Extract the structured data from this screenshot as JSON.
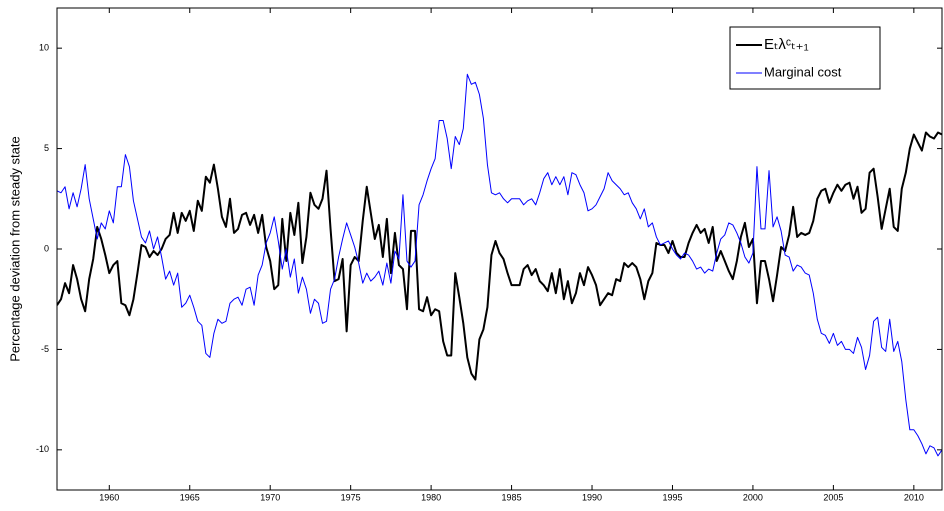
{
  "chart_data": {
    "type": "line",
    "ylabel": "Percentage deviation from steady state",
    "xlim": [
      1956.75,
      2011.75
    ],
    "xticks": [
      1960,
      1965,
      1970,
      1975,
      1980,
      1985,
      1990,
      1995,
      2000,
      2005,
      2010
    ],
    "ylim": [
      -12,
      12
    ],
    "yticks": [
      -10,
      -5,
      0,
      5,
      10
    ],
    "legend": "top-right",
    "x": [
      1956.75,
      1957,
      1957.25,
      1957.5,
      1957.75,
      1958,
      1958.25,
      1958.5,
      1958.75,
      1959,
      1959.25,
      1959.5,
      1959.75,
      1960,
      1960.25,
      1960.5,
      1960.75,
      1961,
      1961.25,
      1961.5,
      1961.75,
      1962,
      1962.25,
      1962.5,
      1962.75,
      1963,
      1963.25,
      1963.5,
      1963.75,
      1964,
      1964.25,
      1964.5,
      1964.75,
      1965,
      1965.25,
      1965.5,
      1965.75,
      1966,
      1966.25,
      1966.5,
      1966.75,
      1967,
      1967.25,
      1967.5,
      1967.75,
      1968,
      1968.25,
      1968.5,
      1968.75,
      1969,
      1969.25,
      1969.5,
      1969.75,
      1970,
      1970.25,
      1970.5,
      1970.75,
      1971,
      1971.25,
      1971.5,
      1971.75,
      1972,
      1972.25,
      1972.5,
      1972.75,
      1973,
      1973.25,
      1973.5,
      1973.75,
      1974,
      1974.25,
      1974.5,
      1974.75,
      1975,
      1975.25,
      1975.5,
      1975.75,
      1976,
      1976.25,
      1976.5,
      1976.75,
      1977,
      1977.25,
      1977.5,
      1977.75,
      1978,
      1978.25,
      1978.5,
      1978.75,
      1979,
      1979.25,
      1979.5,
      1979.75,
      1980,
      1980.25,
      1980.5,
      1980.75,
      1981,
      1981.25,
      1981.5,
      1981.75,
      1982,
      1982.25,
      1982.5,
      1982.75,
      1983,
      1983.25,
      1983.5,
      1983.75,
      1984,
      1984.25,
      1984.5,
      1984.75,
      1985,
      1985.25,
      1985.5,
      1985.75,
      1986,
      1986.25,
      1986.5,
      1986.75,
      1987,
      1987.25,
      1987.5,
      1987.75,
      1988,
      1988.25,
      1988.5,
      1988.75,
      1989,
      1989.25,
      1989.5,
      1989.75,
      1990,
      1990.25,
      1990.5,
      1990.75,
      1991,
      1991.25,
      1991.5,
      1991.75,
      1992,
      1992.25,
      1992.5,
      1992.75,
      1993,
      1993.25,
      1993.5,
      1993.75,
      1994,
      1994.25,
      1994.5,
      1994.75,
      1995,
      1995.25,
      1995.5,
      1995.75,
      1996,
      1996.25,
      1996.5,
      1996.75,
      1997,
      1997.25,
      1997.5,
      1997.75,
      1998,
      1998.25,
      1998.5,
      1998.75,
      1999,
      1999.25,
      1999.5,
      1999.75,
      2000,
      2000.25,
      2000.5,
      2000.75,
      2001,
      2001.25,
      2001.5,
      2001.75,
      2002,
      2002.25,
      2002.5,
      2002.75,
      2003,
      2003.25,
      2003.5,
      2003.75,
      2004,
      2004.25,
      2004.5,
      2004.75,
      2005,
      2005.25,
      2005.5,
      2005.75,
      2006,
      2006.25,
      2006.5,
      2006.75,
      2007,
      2007.25,
      2007.5,
      2007.75,
      2008,
      2008.25,
      2008.5,
      2008.75,
      2009,
      2009.25,
      2009.5,
      2009.75,
      2010,
      2010.25,
      2010.5,
      2010.75,
      2011,
      2011.25,
      2011.5,
      2011.75
    ],
    "series": [
      {
        "name": "Eₜλᶜₜ₊₁",
        "color": "#000000",
        "width": 2,
        "values": [
          -2.8,
          -2.5,
          -1.7,
          -2.2,
          -0.8,
          -1.5,
          -2.5,
          -3.1,
          -1.5,
          -0.5,
          1.1,
          0.5,
          -0.3,
          -1.2,
          -0.8,
          -0.6,
          -2.7,
          -2.8,
          -3.3,
          -2.5,
          -1.2,
          0.2,
          0.1,
          -0.4,
          -0.1,
          -0.3,
          0.0,
          0.5,
          0.7,
          1.8,
          0.8,
          1.8,
          1.4,
          1.9,
          0.9,
          2.4,
          1.9,
          3.6,
          3.3,
          4.2,
          3.0,
          1.6,
          1.1,
          2.5,
          0.8,
          1.0,
          1.7,
          1.8,
          1.2,
          1.7,
          0.8,
          1.7,
          0.1,
          -0.6,
          -2.0,
          -1.8,
          1.5,
          -0.6,
          1.8,
          0.7,
          2.3,
          -0.7,
          0.6,
          2.8,
          2.2,
          2.0,
          2.5,
          3.9,
          1.0,
          -1.6,
          -1.5,
          -0.5,
          -4.1,
          -0.8,
          -0.4,
          -0.6,
          1.4,
          3.1,
          1.8,
          0.5,
          1.2,
          -0.4,
          1.5,
          -1.2,
          0.8,
          -0.8,
          -1.0,
          -3.0,
          0.9,
          0.9,
          -3.0,
          -3.1,
          -2.4,
          -3.3,
          -3.0,
          -3.1,
          -4.6,
          -5.3,
          -5.3,
          -1.2,
          -2.4,
          -3.7,
          -5.4,
          -6.2,
          -6.5,
          -4.5,
          -4.0,
          -2.9,
          -0.3,
          0.4,
          -0.2,
          -0.5,
          -1.2,
          -1.8,
          -1.8,
          -1.8,
          -1.0,
          -0.8,
          -1.3,
          -1.0,
          -1.6,
          -1.8,
          -2.1,
          -1.2,
          -2.2,
          -1.0,
          -2.5,
          -1.6,
          -2.7,
          -2.2,
          -1.2,
          -1.8,
          -0.9,
          -1.3,
          -1.8,
          -2.8,
          -2.5,
          -2.2,
          -2.3,
          -1.5,
          -1.6,
          -0.7,
          -0.9,
          -0.7,
          -0.9,
          -1.5,
          -2.5,
          -1.6,
          -1.2,
          0.3,
          0.2,
          0.2,
          -0.2,
          0.4,
          -0.2,
          -0.4,
          -0.4,
          0.3,
          0.8,
          1.2,
          0.8,
          1.0,
          0.3,
          1.1,
          -0.6,
          -0.1,
          -0.6,
          -1.1,
          -1.5,
          -0.6,
          0.6,
          1.3,
          0.1,
          0.5,
          -2.7,
          -0.6,
          -0.6,
          -1.5,
          -2.6,
          -1.3,
          0.1,
          -0.1,
          0.7,
          2.1,
          0.6,
          0.8,
          0.7,
          0.8,
          1.4,
          2.5,
          2.9,
          3.0,
          2.3,
          2.8,
          3.2,
          2.9,
          3.2,
          3.3,
          2.5,
          3.1,
          1.8,
          2.0,
          3.8,
          4.0,
          2.6,
          1.0,
          2.0,
          3.0,
          1.1,
          0.9,
          3.0,
          3.8,
          5.0,
          5.7,
          5.3,
          4.9,
          5.8,
          5.6,
          5.5,
          5.8,
          5.7
        ]
      },
      {
        "name": "Marginal cost",
        "color": "#0000ff",
        "width": 1,
        "values": [
          2.9,
          2.8,
          3.1,
          2.0,
          2.8,
          2.1,
          3.0,
          4.2,
          2.5,
          1.5,
          0.5,
          1.3,
          1.0,
          1.9,
          1.3,
          3.1,
          3.1,
          4.7,
          4.1,
          2.4,
          1.5,
          0.6,
          0.3,
          0.9,
          0.0,
          0.6,
          -0.4,
          -1.5,
          -1.1,
          -1.8,
          -1.2,
          -2.9,
          -2.7,
          -2.3,
          -2.9,
          -3.6,
          -3.8,
          -5.2,
          -5.4,
          -4.2,
          -3.5,
          -3.7,
          -3.6,
          -2.7,
          -2.5,
          -2.4,
          -2.8,
          -2.0,
          -1.9,
          -2.8,
          -1.3,
          -0.8,
          0.3,
          0.8,
          1.6,
          0.4,
          -1.0,
          0.0,
          -1.4,
          -0.5,
          -2.2,
          -1.4,
          -2.0,
          -3.2,
          -2.5,
          -2.7,
          -3.7,
          -3.6,
          -2.0,
          -1.5,
          -0.4,
          0.5,
          1.3,
          0.7,
          0.1,
          -0.7,
          -1.7,
          -1.2,
          -1.6,
          -1.4,
          -1.1,
          -1.8,
          -0.7,
          -1.7,
          -0.1,
          -0.5,
          2.7,
          -0.6,
          -0.9,
          -0.6,
          2.2,
          2.7,
          3.4,
          4.0,
          4.5,
          6.4,
          6.4,
          5.5,
          4.0,
          5.6,
          5.2,
          6.0,
          8.7,
          8.2,
          8.3,
          7.7,
          6.5,
          4.2,
          2.8,
          2.7,
          2.8,
          2.5,
          2.3,
          2.5,
          2.5,
          2.5,
          2.2,
          2.4,
          2.5,
          2.2,
          2.8,
          3.5,
          3.8,
          3.2,
          3.6,
          3.2,
          3.6,
          2.7,
          3.8,
          3.7,
          3.2,
          2.8,
          1.9,
          2.0,
          2.2,
          2.6,
          3.0,
          3.8,
          3.4,
          3.2,
          3.0,
          2.7,
          2.8,
          2.3,
          2.0,
          1.5,
          2.0,
          1.1,
          1.3,
          0.6,
          0.2,
          0.3,
          0.4,
          0.0,
          -0.3,
          -0.5,
          -0.2,
          -0.3,
          -0.6,
          -1.0,
          -0.9,
          -1.2,
          -1.0,
          -1.1,
          -0.2,
          0.5,
          0.7,
          1.3,
          1.2,
          0.8,
          0.3,
          -0.4,
          -0.7,
          -0.2,
          4.1,
          1.0,
          1.0,
          3.9,
          1.1,
          1.6,
          0.9,
          -0.3,
          -0.4,
          -1.1,
          -0.8,
          -0.9,
          -1.2,
          -1.3,
          -2.2,
          -3.5,
          -4.2,
          -4.3,
          -4.7,
          -4.2,
          -4.8,
          -4.6,
          -5.0,
          -5.0,
          -5.2,
          -4.4,
          -4.9,
          -6.0,
          -5.3,
          -3.6,
          -3.4,
          -4.9,
          -5.1,
          -3.5,
          -5.1,
          -4.6,
          -5.6,
          -7.5,
          -9.0,
          -9.0,
          -9.3,
          -9.7,
          -10.2,
          -9.8,
          -9.9,
          -10.3,
          -10.0
        ]
      }
    ]
  }
}
